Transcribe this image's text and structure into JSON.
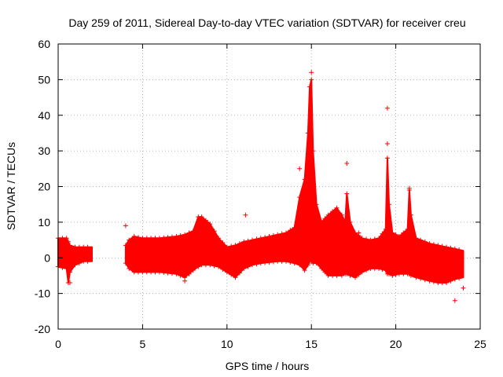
{
  "chart_data": {
    "type": "scatter",
    "title": "Day 259 of 2011, Sidereal Day-to-day VTEC variation (SDTVAR) for receiver creu",
    "xlabel": "GPS time / hours",
    "ylabel": "SDTVAR / TECUs",
    "xlim": [
      0,
      25
    ],
    "ylim": [
      -20,
      60
    ],
    "xticks": [
      0,
      5,
      10,
      15,
      20,
      25
    ],
    "yticks": [
      -20,
      -10,
      0,
      10,
      20,
      30,
      40,
      50,
      60
    ],
    "grid": true,
    "marker": "+",
    "series_color": "#ff0000",
    "data_gap_hours": [
      2.1,
      4.0
    ],
    "envelope": {
      "x": [
        0.0,
        0.5,
        0.6,
        0.7,
        1.0,
        1.5,
        2.0,
        4.0,
        4.2,
        4.5,
        5.0,
        6.0,
        7.0,
        7.5,
        8.0,
        8.3,
        8.5,
        9.0,
        9.5,
        10.0,
        10.5,
        11.0,
        11.5,
        12.0,
        13.0,
        13.5,
        14.0,
        14.3,
        14.6,
        14.8,
        14.9,
        15.0,
        15.1,
        15.3,
        15.6,
        16.0,
        16.5,
        16.8,
        17.0,
        17.1,
        17.3,
        17.6,
        18.0,
        18.5,
        19.0,
        19.4,
        19.5,
        19.6,
        19.8,
        20.2,
        20.7,
        20.8,
        20.9,
        21.2,
        22.0,
        22.5,
        23.0,
        23.5,
        24.0
      ],
      "upper": [
        5.5,
        5.5,
        4.5,
        3.5,
        3.0,
        3.0,
        3.0,
        3.5,
        5.0,
        6.0,
        5.5,
        5.5,
        6.0,
        6.5,
        7.5,
        11.5,
        11.5,
        9.5,
        5.5,
        3.0,
        3.5,
        4.5,
        5.0,
        5.5,
        6.5,
        7.0,
        8.5,
        17.0,
        22.0,
        35.0,
        48.0,
        50.0,
        30.0,
        15.0,
        10.0,
        12.0,
        14.0,
        12.0,
        10.0,
        18.0,
        10.0,
        7.0,
        5.5,
        5.0,
        5.5,
        8.0,
        28.0,
        15.0,
        7.0,
        6.0,
        8.0,
        19.0,
        12.0,
        5.5,
        4.0,
        3.5,
        3.0,
        2.5,
        2.0
      ],
      "lower": [
        -2.5,
        -3.0,
        -7.0,
        -4.0,
        -2.0,
        -1.0,
        -1.0,
        -1.5,
        -3.0,
        -4.0,
        -4.0,
        -4.0,
        -4.5,
        -5.5,
        -3.5,
        -2.5,
        -2.0,
        -2.0,
        -2.5,
        -4.0,
        -5.5,
        -3.0,
        -2.0,
        -1.5,
        -1.0,
        -1.0,
        -1.5,
        -2.0,
        -3.5,
        -2.0,
        -1.0,
        -1.0,
        -1.5,
        -1.5,
        -3.0,
        -5.0,
        -5.0,
        -5.0,
        -4.5,
        -4.5,
        -5.0,
        -5.5,
        -4.0,
        -3.0,
        -3.0,
        -3.5,
        -4.5,
        -4.5,
        -5.0,
        -4.5,
        -4.5,
        -4.5,
        -5.0,
        -5.5,
        -6.5,
        -7.0,
        -7.0,
        -6.0,
        -5.5
      ]
    },
    "outlier_points": [
      {
        "x": 0.7,
        "y": -7
      },
      {
        "x": 4.0,
        "y": 9
      },
      {
        "x": 7.5,
        "y": -6.5
      },
      {
        "x": 10.5,
        "y": -5
      },
      {
        "x": 11.1,
        "y": 12
      },
      {
        "x": 14.3,
        "y": 25
      },
      {
        "x": 15.0,
        "y": 52
      },
      {
        "x": 17.1,
        "y": 26.5
      },
      {
        "x": 17.8,
        "y": 7
      },
      {
        "x": 19.5,
        "y": 42
      },
      {
        "x": 19.5,
        "y": 32
      },
      {
        "x": 20.8,
        "y": 19.5
      },
      {
        "x": 23.5,
        "y": -12
      },
      {
        "x": 24.0,
        "y": -8.5
      }
    ]
  }
}
